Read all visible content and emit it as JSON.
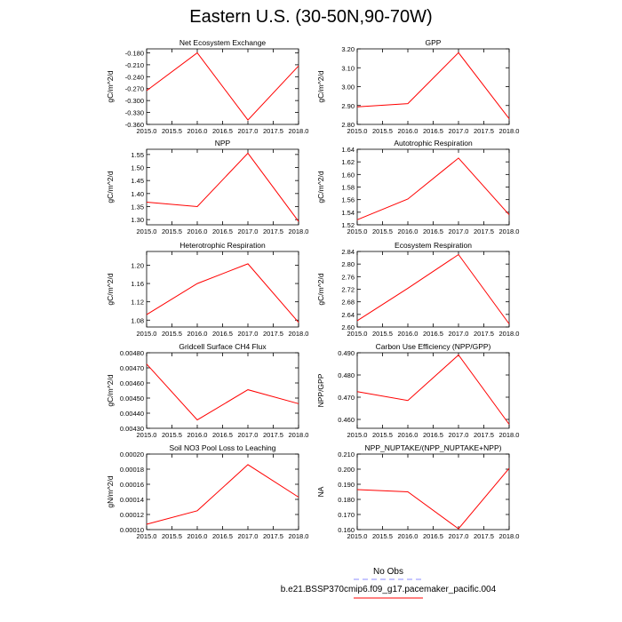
{
  "page": {
    "title": "Eastern U.S. (30-50N,90-70W)"
  },
  "legend": {
    "entries": [
      {
        "label": "No Obs",
        "color": "#8c8cff",
        "dashed": true
      },
      {
        "label": "b.e21.BSSP370cmip6.f09_g17.pacemaker_pacific.004",
        "color": "#ff0000",
        "dashed": false
      }
    ]
  },
  "colors": {
    "series": "#ff0000",
    "axes": "#000000"
  },
  "chart_data": [
    {
      "type": "line",
      "title": "Net Ecosystem Exchange",
      "xlabel": "",
      "ylabel": "gC/m^2/d",
      "xlim": [
        2015.0,
        2018.0
      ],
      "ylim": [
        -0.36,
        -0.17
      ],
      "x": [
        2015,
        2016,
        2017,
        2018
      ],
      "y": [
        -0.275,
        -0.18,
        -0.349,
        -0.213
      ],
      "xticks": [
        "2015.0",
        "2015.5",
        "2016.0",
        "2016.5",
        "2017.0",
        "2017.5",
        "2018.0"
      ],
      "yticks": [
        "-0.180",
        "-0.210",
        "-0.240",
        "-0.270",
        "-0.300",
        "-0.330",
        "-0.360"
      ],
      "ytick_values": [
        -0.18,
        -0.21,
        -0.24,
        -0.27,
        -0.3,
        -0.33,
        -0.36
      ]
    },
    {
      "type": "line",
      "title": "GPP",
      "xlabel": "",
      "ylabel": "gC/m^2/d",
      "xlim": [
        2015.0,
        2018.0
      ],
      "ylim": [
        2.8,
        3.2
      ],
      "x": [
        2015,
        2016,
        2017,
        2018
      ],
      "y": [
        2.893,
        2.91,
        3.18,
        2.83
      ],
      "xticks": [
        "2015.0",
        "2015.5",
        "2016.0",
        "2016.5",
        "2017.0",
        "2017.5",
        "2018.0"
      ],
      "yticks": [
        "3.20",
        "3.10",
        "3.00",
        "2.90",
        "2.80"
      ],
      "ytick_values": [
        3.2,
        3.1,
        3.0,
        2.9,
        2.8
      ]
    },
    {
      "type": "line",
      "title": "NPP",
      "xlabel": "",
      "ylabel": "gC/m^2/d",
      "xlim": [
        2015.0,
        2018.0
      ],
      "ylim": [
        1.28,
        1.57
      ],
      "x": [
        2015,
        2016,
        2017,
        2018
      ],
      "y": [
        1.367,
        1.35,
        1.555,
        1.293
      ],
      "xticks": [
        "2015.0",
        "2015.5",
        "2016.0",
        "2016.5",
        "2017.0",
        "2017.5",
        "2018.0"
      ],
      "yticks": [
        "1.55",
        "1.50",
        "1.45",
        "1.40",
        "1.35",
        "1.30"
      ],
      "ytick_values": [
        1.55,
        1.5,
        1.45,
        1.4,
        1.35,
        1.3
      ]
    },
    {
      "type": "line",
      "title": "Autotrophic Respiration",
      "xlabel": "",
      "ylabel": "gC/m^2/d",
      "xlim": [
        2015.0,
        2018.0
      ],
      "ylim": [
        1.52,
        1.64
      ],
      "x": [
        2015,
        2016,
        2017,
        2018
      ],
      "y": [
        1.528,
        1.561,
        1.626,
        1.536
      ],
      "xticks": [
        "2015.0",
        "2015.5",
        "2016.0",
        "2016.5",
        "2017.0",
        "2017.5",
        "2018.0"
      ],
      "yticks": [
        "1.64",
        "1.62",
        "1.60",
        "1.58",
        "1.56",
        "1.54",
        "1.52"
      ],
      "ytick_values": [
        1.64,
        1.62,
        1.6,
        1.58,
        1.56,
        1.54,
        1.52
      ]
    },
    {
      "type": "line",
      "title": "Heterotrophic Respiration",
      "xlabel": "",
      "ylabel": "gC/m^2/d",
      "xlim": [
        2015.0,
        2018.0
      ],
      "ylim": [
        1.065,
        1.23
      ],
      "x": [
        2015,
        2016,
        2017,
        2018
      ],
      "y": [
        1.092,
        1.16,
        1.203,
        1.075
      ],
      "xticks": [
        "2015.0",
        "2015.5",
        "2016.0",
        "2016.5",
        "2017.0",
        "2017.5",
        "2018.0"
      ],
      "yticks": [
        "1.20",
        "1.16",
        "1.12",
        "1.08"
      ],
      "ytick_values": [
        1.2,
        1.16,
        1.12,
        1.08
      ]
    },
    {
      "type": "line",
      "title": "Ecosystem Respiration",
      "xlabel": "",
      "ylabel": "gC/m^2/d",
      "xlim": [
        2015.0,
        2018.0
      ],
      "ylim": [
        2.6,
        2.84
      ],
      "x": [
        2015,
        2016,
        2017,
        2018
      ],
      "y": [
        2.62,
        2.723,
        2.83,
        2.61
      ],
      "xticks": [
        "2015.0",
        "2015.5",
        "2016.0",
        "2016.5",
        "2017.0",
        "2017.5",
        "2018.0"
      ],
      "yticks": [
        "2.84",
        "2.80",
        "2.76",
        "2.72",
        "2.68",
        "2.64",
        "2.60"
      ],
      "ytick_values": [
        2.84,
        2.8,
        2.76,
        2.72,
        2.68,
        2.64,
        2.6
      ]
    },
    {
      "type": "line",
      "title": "Gridcell Surface CH4 Flux",
      "xlabel": "",
      "ylabel": "gC/m^2/d",
      "xlim": [
        2015.0,
        2018.0
      ],
      "ylim": [
        0.0043,
        0.0048
      ],
      "x": [
        2015,
        2016,
        2017,
        2018
      ],
      "y": [
        0.004725,
        0.004355,
        0.004555,
        0.004463
      ],
      "xticks": [
        "2015.0",
        "2015.5",
        "2016.0",
        "2016.5",
        "2017.0",
        "2017.5",
        "2018.0"
      ],
      "yticks": [
        "0.00480",
        "0.00470",
        "0.00460",
        "0.00450",
        "0.00440",
        "0.00430"
      ],
      "ytick_values": [
        0.0048,
        0.0047,
        0.0046,
        0.0045,
        0.0044,
        0.0043
      ]
    },
    {
      "type": "line",
      "title": "Carbon Use Efficiency (NPP/GPP)",
      "xlabel": "",
      "ylabel": "NPP/GPP",
      "xlim": [
        2015.0,
        2018.0
      ],
      "ylim": [
        0.456,
        0.49
      ],
      "x": [
        2015,
        2016,
        2017,
        2018
      ],
      "y": [
        0.4725,
        0.4685,
        0.489,
        0.4578
      ],
      "xticks": [
        "2015.0",
        "2015.5",
        "2016.0",
        "2016.5",
        "2017.0",
        "2017.5",
        "2018.0"
      ],
      "yticks": [
        "0.490",
        "0.480",
        "0.470",
        "0.460"
      ],
      "ytick_values": [
        0.49,
        0.48,
        0.47,
        0.46
      ]
    },
    {
      "type": "line",
      "title": "Soil NO3 Pool Loss to Leaching",
      "xlabel": "",
      "ylabel": "gN/m^2/d",
      "xlim": [
        2015.0,
        2018.0
      ],
      "ylim": [
        0.0001,
        0.0002
      ],
      "x": [
        2015,
        2016,
        2017,
        2018
      ],
      "y": [
        0.000107,
        0.000125,
        0.000186,
        0.000143
      ],
      "xticks": [
        "2015.0",
        "2015.5",
        "2016.0",
        "2016.5",
        "2017.0",
        "2017.5",
        "2018.0"
      ],
      "yticks": [
        "0.00020",
        "0.00018",
        "0.00016",
        "0.00014",
        "0.00012",
        "0.00010"
      ],
      "ytick_values": [
        0.0002,
        0.00018,
        0.00016,
        0.00014,
        0.00012,
        0.0001
      ]
    },
    {
      "type": "line",
      "title": "NPP_NUPTAKE/(NPP_NUPTAKE+NPP)",
      "xlabel": "",
      "ylabel": "NA",
      "xlim": [
        2015.0,
        2018.0
      ],
      "ylim": [
        0.16,
        0.21
      ],
      "x": [
        2015,
        2016,
        2017,
        2018
      ],
      "y": [
        0.1865,
        0.185,
        0.1605,
        0.2005
      ],
      "xticks": [
        "2015.0",
        "2015.5",
        "2016.0",
        "2016.5",
        "2017.0",
        "2017.5",
        "2018.0"
      ],
      "yticks": [
        "0.210",
        "0.200",
        "0.190",
        "0.180",
        "0.170",
        "0.160"
      ],
      "ytick_values": [
        0.21,
        0.2,
        0.19,
        0.18,
        0.17,
        0.16
      ]
    }
  ]
}
